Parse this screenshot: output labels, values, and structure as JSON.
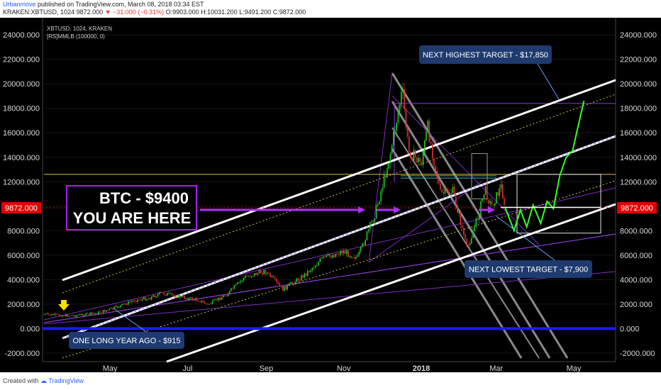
{
  "header": {
    "author": "Urbanmove",
    "published": "published on TradingView.com, March 08, 2018 03:34 EST",
    "symbol_line": "KRAKEN:XBTUSD, 1024",
    "price": "9872.000",
    "change": "▼ −31.000 (−0.31%)",
    "ohlc": "O:9903.000 H:10031.200 L:9491.200 C:9872.000"
  },
  "chart_data": {
    "type": "line",
    "title": "XBTUSD, 1024, KRAKEN",
    "subtitle": "[RS]MMLB (100000, 0)",
    "ylim": [
      -2700,
      25400
    ],
    "y_ticks": [
      "24000.000",
      "22000.000",
      "20000.000",
      "18000.000",
      "16000.000",
      "14000.000",
      "12000.000",
      "10000.000",
      "8000.000",
      "6000.000",
      "4000.000",
      "2000.000",
      "0.000",
      "-2000.000"
    ],
    "x_ticks": [
      "May",
      "Jul",
      "Sep",
      "Nov",
      "2018",
      "Mar",
      "May"
    ],
    "current_price_label": "9872.000",
    "series": [
      {
        "x": [
          "2017-03-10",
          "2017-04-01",
          "2017-04-20",
          "2017-05-05",
          "2017-05-20",
          "2017-06-01",
          "2017-06-10",
          "2017-06-25",
          "2017-07-10",
          "2017-07-17",
          "2017-08-01",
          "2017-08-15",
          "2017-08-31",
          "2017-09-14",
          "2017-09-30",
          "2017-10-15",
          "2017-10-31",
          "2017-11-12",
          "2017-11-26",
          "2017-12-07",
          "2017-12-17",
          "2017-12-22",
          "2018-01-01",
          "2018-01-06",
          "2018-01-16",
          "2018-01-26",
          "2018-02-06",
          "2018-02-15",
          "2018-02-20",
          "2018-02-25",
          "2018-03-05",
          "2018-03-08"
        ],
        "values": [
          1150,
          1050,
          1250,
          1700,
          2300,
          2500,
          2900,
          2600,
          2300,
          1950,
          2800,
          4200,
          4700,
          3200,
          4300,
          5700,
          6300,
          5800,
          9500,
          14000,
          19500,
          14500,
          13500,
          16500,
          11000,
          11200,
          6500,
          9300,
          11400,
          10000,
          11600,
          9872
        ]
      },
      {
        "x": [
          "2018-03-08",
          "2018-03-15",
          "2018-03-20",
          "2018-03-25",
          "2018-03-30",
          "2018-04-05",
          "2018-04-10",
          "2018-04-15",
          "2018-04-20",
          "2018-04-25",
          "2018-04-30",
          "2018-05-05",
          "2018-05-09"
        ],
        "values": [
          9872,
          8000,
          9700,
          8300,
          10100,
          8600,
          10400,
          9800,
          12500,
          14000,
          14500,
          16800,
          18600
        ]
      }
    ],
    "levels": [
      {
        "value": 9872,
        "label": "9872.000"
      },
      {
        "value": 0,
        "label": "0.000"
      },
      {
        "value": 12600,
        "label": ""
      },
      {
        "value": 18400,
        "label": ""
      }
    ],
    "annotations": [
      {
        "text_lines": [
          "BTC - $9400",
          "YOU ARE HERE"
        ]
      },
      {
        "text": "NEXT HIGHEST TARGET - $17,850"
      },
      {
        "text": "NEXT LOWEST TARGET - $7,900"
      },
      {
        "text": "ONE LONG YEAR AGO - $915"
      }
    ],
    "colors": {
      "background": "#000000",
      "projection": "#33ff22",
      "channel": "#ffffff",
      "level_zero": "#1a1aff",
      "price_tag": "#e00000",
      "annotation_box": "#1e3a6e",
      "arrow": "#b030ff"
    }
  },
  "footer": {
    "created_with": "Created with",
    "brand": "TradingView"
  }
}
